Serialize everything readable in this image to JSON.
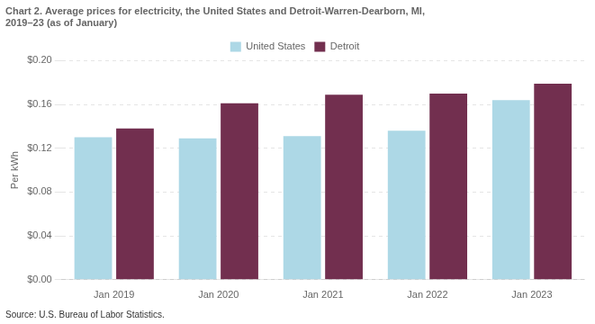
{
  "chart_data": {
    "type": "bar",
    "title": [
      "Chart 2. Average prices for electricity, the United States and Detroit-Warren-Dearborn, MI,",
      "2019–23 (as of January)"
    ],
    "ylabel": "Per kWh",
    "source": "Source: U.S. Bureau of Labor Statistics.",
    "categories": [
      "Jan 2019",
      "Jan 2020",
      "Jan 2021",
      "Jan 2022",
      "Jan 2023"
    ],
    "series": [
      {
        "name": "United States",
        "color": "#ADD8E6",
        "values": [
          0.13,
          0.129,
          0.131,
          0.136,
          0.164
        ]
      },
      {
        "name": "Detroit",
        "color": "#722F4F",
        "values": [
          0.138,
          0.161,
          0.169,
          0.17,
          0.179
        ]
      }
    ],
    "ylim": [
      0,
      0.2
    ],
    "yticks": [
      {
        "value": 0.0,
        "label": "$0.00"
      },
      {
        "value": 0.04,
        "label": "$0.04"
      },
      {
        "value": 0.08,
        "label": "$0.08"
      },
      {
        "value": 0.12,
        "label": "$0.12"
      },
      {
        "value": 0.16,
        "label": "$0.16"
      },
      {
        "value": 0.2,
        "label": "$0.20"
      }
    ],
    "grid": true,
    "legend": "top"
  }
}
